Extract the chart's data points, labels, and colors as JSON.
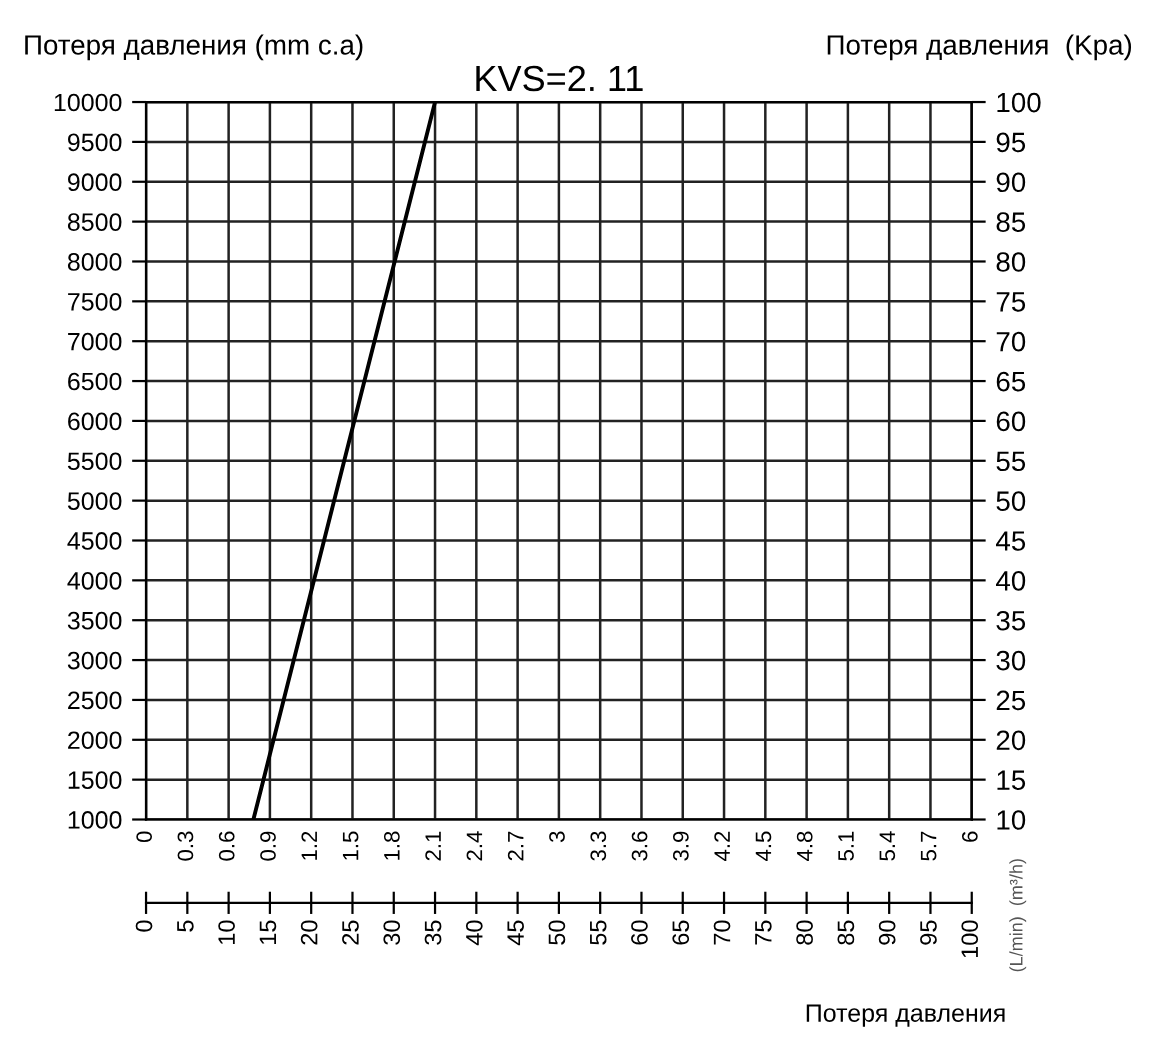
{
  "chart_data": {
    "type": "line",
    "title": "KVS=2. 11",
    "ylabel": "Потеря давления (mm c.a)",
    "y2label": "Потеря давления  (Kpa)",
    "xlabel": "Потеря давления",
    "annotations": [
      "(L/min)  (m³/h)"
    ],
    "series": [
      {
        "x": [
          0.78,
          2.1
        ],
        "values": [
          1000,
          10000
        ],
        "color": "#000000"
      }
    ],
    "xlim": [
      0,
      6
    ],
    "xticks": [
      0,
      0.3,
      0.6,
      0.9,
      1.2,
      1.5,
      1.8,
      2.1,
      2.4,
      2.7,
      3,
      3.3,
      3.6,
      3.9,
      4.2,
      4.5,
      4.8,
      5.1,
      5.4,
      5.7,
      6
    ],
    "x2lim": [
      0,
      100
    ],
    "x2ticks": [
      0,
      5,
      10,
      15,
      20,
      25,
      30,
      35,
      40,
      45,
      50,
      55,
      60,
      65,
      70,
      75,
      80,
      85,
      90,
      95,
      100
    ],
    "ylim": [
      1000,
      10000
    ],
    "yticks": [
      1000,
      1500,
      2000,
      2500,
      3000,
      3500,
      4000,
      4500,
      5000,
      5500,
      6000,
      6500,
      7000,
      7500,
      8000,
      8500,
      9000,
      9500,
      10000
    ],
    "y2lim": [
      10,
      100
    ],
    "y2ticks": [
      10,
      15,
      20,
      25,
      30,
      35,
      40,
      45,
      50,
      55,
      60,
      65,
      70,
      75,
      80,
      85,
      90,
      95,
      100
    ],
    "grid": true,
    "legend": false,
    "marker": "none",
    "line_style": "solid"
  }
}
